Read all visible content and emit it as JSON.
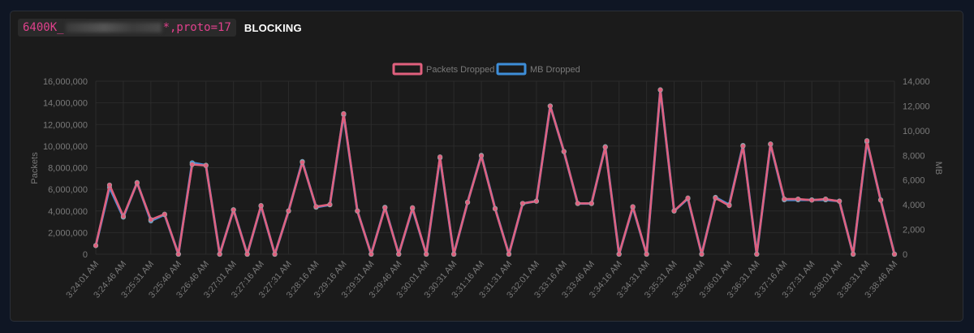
{
  "header": {
    "filter_prefix": "6400K_",
    "filter_suffix": "*,proto=17",
    "status": "BLOCKING"
  },
  "colors": {
    "packets": "#e0607e",
    "mb": "#3e8ed8",
    "grid": "#2b2b2b",
    "tick": "#7a7a7a"
  },
  "chart_data": {
    "type": "line",
    "title": "",
    "legend_position": "top-center",
    "grid": true,
    "left_axis": {
      "label": "Packets",
      "range": [
        0,
        16000000
      ],
      "ticks": [
        "0",
        "2,000,000",
        "4,000,000",
        "6,000,000",
        "8,000,000",
        "10,000,000",
        "12,000,000",
        "14,000,000",
        "16,000,000"
      ]
    },
    "right_axis": {
      "label": "MB",
      "range": [
        0,
        14000
      ],
      "ticks": [
        "0",
        "2,000",
        "4,000",
        "6,000",
        "8,000",
        "10,000",
        "12,000",
        "14,000"
      ]
    },
    "x_tick_labels": [
      "3:24:01 AM",
      "3:24:46 AM",
      "3:25:31 AM",
      "3:25:46 AM",
      "3:26:46 AM",
      "3:27:01 AM",
      "3:27:16 AM",
      "3:27:31 AM",
      "3:28:16 AM",
      "3:29:16 AM",
      "3:29:31 AM",
      "3:29:46 AM",
      "3:30:01 AM",
      "3:30:31 AM",
      "3:31:16 AM",
      "3:31:31 AM",
      "3:32:01 AM",
      "3:33:16 AM",
      "3:33:46 AM",
      "3:34:16 AM",
      "3:34:31 AM",
      "3:35:31 AM",
      "3:35:46 AM",
      "3:36:01 AM",
      "3:36:31 AM",
      "3:37:16 AM",
      "3:37:31 AM",
      "3:38:01 AM",
      "3:38:31 AM",
      "3:38:46 AM"
    ],
    "series": [
      {
        "name": "Packets Dropped",
        "axis": "left",
        "values": [
          800000,
          6400000,
          3500000,
          6600000,
          3200000,
          3700000,
          0,
          8300000,
          8200000,
          0,
          4100000,
          0,
          4500000,
          0,
          4000000,
          8500000,
          4400000,
          4600000,
          13000000,
          4000000,
          0,
          4300000,
          0,
          4300000,
          0,
          9000000,
          0,
          4800000,
          9100000,
          4200000,
          0,
          4700000,
          4900000,
          13700000,
          9500000,
          4700000,
          4700000,
          9900000,
          0,
          4400000,
          0,
          15200000,
          4000000,
          5200000,
          0,
          5200000,
          4500000,
          10000000,
          0,
          10200000,
          5100000,
          5100000,
          5000000,
          5100000,
          4900000,
          0,
          10500000,
          5000000,
          0
        ]
      },
      {
        "name": "MB Dropped",
        "axis": "right",
        "values": [
          700,
          5400,
          3000,
          5800,
          2700,
          3200,
          0,
          7400,
          7200,
          0,
          3600,
          0,
          3900,
          0,
          3500,
          7500,
          3800,
          4000,
          11300,
          3500,
          0,
          3800,
          0,
          3700,
          0,
          7800,
          0,
          4200,
          8000,
          3700,
          0,
          4100,
          4300,
          12000,
          8300,
          4100,
          4100,
          8700,
          0,
          3800,
          0,
          13300,
          3500,
          4500,
          0,
          4600,
          4000,
          8800,
          0,
          8900,
          4400,
          4400,
          4400,
          4400,
          4300,
          0,
          9100,
          4400,
          0
        ]
      }
    ]
  }
}
